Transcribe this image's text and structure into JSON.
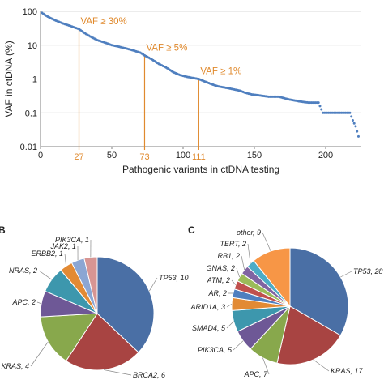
{
  "colors": {
    "scatter_point": "#4f7fbf",
    "threshold_line": "#e08a2e",
    "threshold_text": "#e08a2e",
    "axis": "#808080",
    "grid": "#d9d9d9"
  },
  "chart_data": [
    {
      "type": "scatter",
      "xlabel": "Pathogenic variants in ctDNA testing",
      "ylabel": "VAF in ctDNA (%)",
      "y_scale": "log",
      "xlim": [
        0,
        225
      ],
      "ylim": [
        0.01,
        100
      ],
      "x_ticks": [
        "0",
        "50",
        "100",
        "150",
        "200"
      ],
      "y_ticks": [
        "0.01",
        "0.1",
        "1",
        "10",
        "100"
      ],
      "grid": "horizontal",
      "thresholds": [
        {
          "label": "VAF ≥ 30%",
          "x": 27,
          "x_label": "27",
          "y": 30
        },
        {
          "label": "VAF ≥ 5%",
          "x": 73,
          "x_label": "73",
          "y": 5
        },
        {
          "label": "VAF ≥ 1%",
          "x": 111,
          "x_label": "111",
          "y": 1
        }
      ],
      "series_points": {
        "x": [
          1,
          5,
          10,
          15,
          20,
          25,
          27,
          30,
          35,
          40,
          45,
          50,
          55,
          60,
          65,
          70,
          73,
          78,
          83,
          88,
          93,
          98,
          103,
          108,
          111,
          115,
          120,
          125,
          130,
          135,
          140,
          143,
          148,
          153,
          160,
          167,
          174,
          181,
          188,
          195,
          198,
          203,
          208,
          213,
          217,
          219,
          221,
          223
        ],
        "y": [
          90,
          70,
          55,
          45,
          38,
          32,
          30,
          24,
          18,
          14,
          12,
          10,
          9,
          8,
          7,
          6,
          5,
          3.8,
          2.8,
          2.2,
          1.6,
          1.3,
          1.15,
          1.05,
          1,
          0.85,
          0.7,
          0.6,
          0.55,
          0.5,
          0.45,
          0.4,
          0.35,
          0.33,
          0.3,
          0.3,
          0.25,
          0.22,
          0.2,
          0.2,
          0.1,
          0.1,
          0.1,
          0.1,
          0.1,
          0.06,
          0.04,
          0.02
        ]
      }
    },
    {
      "type": "pie",
      "panel_label": "B",
      "slices": [
        {
          "name": "TP53",
          "label": "TP53, 10",
          "value": 10,
          "color": "#4a6fa5"
        },
        {
          "name": "BRCA2",
          "label": "BRCA2, 6",
          "value": 6,
          "color": "#a84442"
        },
        {
          "name": "KRAS",
          "label": "KRAS, 4",
          "value": 4,
          "color": "#88a84c"
        },
        {
          "name": "APC",
          "label": "APC, 2",
          "value": 2,
          "color": "#6e5896"
        },
        {
          "name": "NRAS",
          "label": "NRAS, 2",
          "value": 2,
          "color": "#3d97ad"
        },
        {
          "name": "ERBB2",
          "label": "ERBB2, 1",
          "value": 1,
          "color": "#e28a34"
        },
        {
          "name": "JAK2",
          "label": "JAK2, 1",
          "value": 1,
          "color": "#8ba6d3"
        },
        {
          "name": "PIK3CA",
          "label": "PIK3CA, 1",
          "value": 1,
          "color": "#d79593"
        }
      ]
    },
    {
      "type": "pie",
      "panel_label": "C",
      "slices": [
        {
          "name": "TP53",
          "label": "TP53, 28",
          "value": 28,
          "color": "#4a6fa5"
        },
        {
          "name": "KRAS",
          "label": "KRAS, 17",
          "value": 17,
          "color": "#a84442"
        },
        {
          "name": "APC",
          "label": "APC, 7",
          "value": 7,
          "color": "#88a84c"
        },
        {
          "name": "PIK3CA",
          "label": "PIK3CA, 5",
          "value": 5,
          "color": "#6e5896"
        },
        {
          "name": "SMAD4",
          "label": "SMAD4, 5",
          "value": 5,
          "color": "#3d97ad"
        },
        {
          "name": "ARID1A",
          "label": "ARID1A, 3",
          "value": 3,
          "color": "#e28a34"
        },
        {
          "name": "AR",
          "label": "AR, 2",
          "value": 2,
          "color": "#4f7fbf"
        },
        {
          "name": "ATM",
          "label": "ATM, 2",
          "value": 2,
          "color": "#c0504d"
        },
        {
          "name": "GNAS",
          "label": "GNAS, 2",
          "value": 2,
          "color": "#9bbb59"
        },
        {
          "name": "RB1",
          "label": "RB1, 2",
          "value": 2,
          "color": "#8064a2"
        },
        {
          "name": "TERT",
          "label": "TERT, 2",
          "value": 2,
          "color": "#4bacc6"
        },
        {
          "name": "other",
          "label": "other, 9",
          "value": 9,
          "color": "#f79646"
        }
      ]
    }
  ]
}
